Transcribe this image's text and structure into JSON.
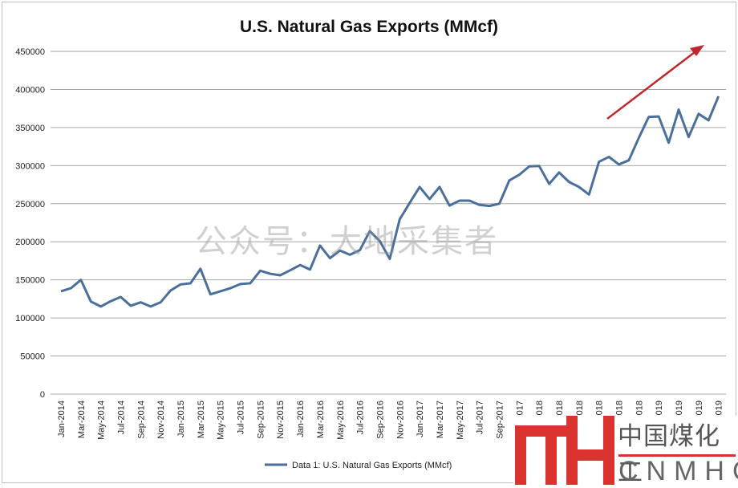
{
  "chart_data": {
    "type": "line",
    "title": "U.S. Natural Gas Exports (MMcf)",
    "xlabel": "",
    "ylabel": "",
    "ylim": [
      0,
      450000
    ],
    "yticks": [
      0,
      50000,
      100000,
      150000,
      200000,
      250000,
      300000,
      350000,
      400000,
      450000
    ],
    "grid": true,
    "legend_position": "bottom",
    "x": [
      "Jan-2014",
      "Feb-2014",
      "Mar-2014",
      "Apr-2014",
      "May-2014",
      "Jun-2014",
      "Jul-2014",
      "Aug-2014",
      "Sep-2014",
      "Oct-2014",
      "Nov-2014",
      "Dec-2014",
      "Jan-2015",
      "Feb-2015",
      "Mar-2015",
      "Apr-2015",
      "May-2015",
      "Jun-2015",
      "Jul-2015",
      "Aug-2015",
      "Sep-2015",
      "Oct-2015",
      "Nov-2015",
      "Dec-2015",
      "Jan-2016",
      "Feb-2016",
      "Mar-2016",
      "Apr-2016",
      "May-2016",
      "Jun-2016",
      "Jul-2016",
      "Aug-2016",
      "Sep-2016",
      "Oct-2016",
      "Nov-2016",
      "Dec-2016",
      "Jan-2017",
      "Feb-2017",
      "Mar-2017",
      "Apr-2017",
      "May-2017",
      "Jun-2017",
      "Jul-2017",
      "Aug-2017",
      "Sep-2017",
      "Oct-2017",
      "Nov-2017",
      "Dec-2017",
      "Jan-2018",
      "Feb-2018",
      "Mar-2018",
      "Apr-2018",
      "May-2018",
      "Jun-2018",
      "Jul-2018",
      "Aug-2018",
      "Sep-2018",
      "Oct-2018",
      "Nov-2018",
      "Dec-2018",
      "Jan-2019",
      "Feb-2019",
      "Mar-2019",
      "Apr-2019",
      "May-2019",
      "Jun-2019",
      "Jul-2019"
    ],
    "series": [
      {
        "name": "Data 1: U.S. Natural Gas Exports (MMcf)",
        "color": "#4a6f9a",
        "values": [
          135000,
          139000,
          150000,
          121500,
          115000,
          122000,
          127500,
          116000,
          120500,
          115000,
          120500,
          136000,
          144000,
          145500,
          164500,
          131000,
          135000,
          139000,
          144500,
          145500,
          162000,
          158000,
          156000,
          162500,
          169500,
          163500,
          195000,
          178500,
          188500,
          183000,
          189000,
          214000,
          201000,
          177500,
          229500,
          251000,
          272000,
          256000,
          272000,
          247500,
          254000,
          254000,
          248500,
          247000,
          250000,
          280500,
          288000,
          299000,
          299500,
          276000,
          291000,
          278500,
          272000,
          262000,
          305000,
          311500,
          301500,
          307000,
          336500,
          364000,
          364500,
          330000,
          373500,
          337500,
          368000,
          359500,
          391000
        ]
      }
    ],
    "annotations": [
      {
        "type": "arrow",
        "color": "#c0282d",
        "meaning": "upward trend"
      }
    ]
  },
  "watermark": "公众号：大地采集者",
  "logo": {
    "cn": "中国煤化工",
    "en": "CNMHG",
    "color": "#d9322f"
  }
}
